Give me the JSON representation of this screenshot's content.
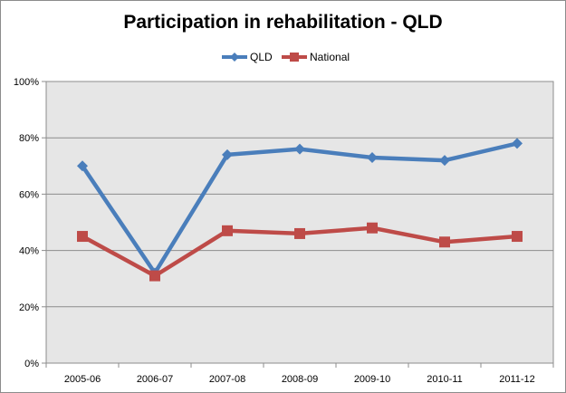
{
  "chart_data": {
    "type": "line",
    "title": "Participation in rehabilitation - QLD",
    "categories": [
      "2005-06",
      "2006-07",
      "2007-08",
      "2008-09",
      "2009-10",
      "2010-11",
      "2011-12"
    ],
    "y_ticks": [
      "0%",
      "20%",
      "40%",
      "60%",
      "80%",
      "100%"
    ],
    "ylim": [
      0,
      100
    ],
    "grid": true,
    "legend_position": "top",
    "series": [
      {
        "name": "QLD",
        "color": "#4a7ebb",
        "marker": "diamond",
        "values": [
          70,
          32,
          74,
          76,
          73,
          72,
          78
        ]
      },
      {
        "name": "National",
        "color": "#be4b48",
        "marker": "square",
        "values": [
          45,
          31,
          47,
          46,
          48,
          43,
          45
        ]
      }
    ]
  }
}
